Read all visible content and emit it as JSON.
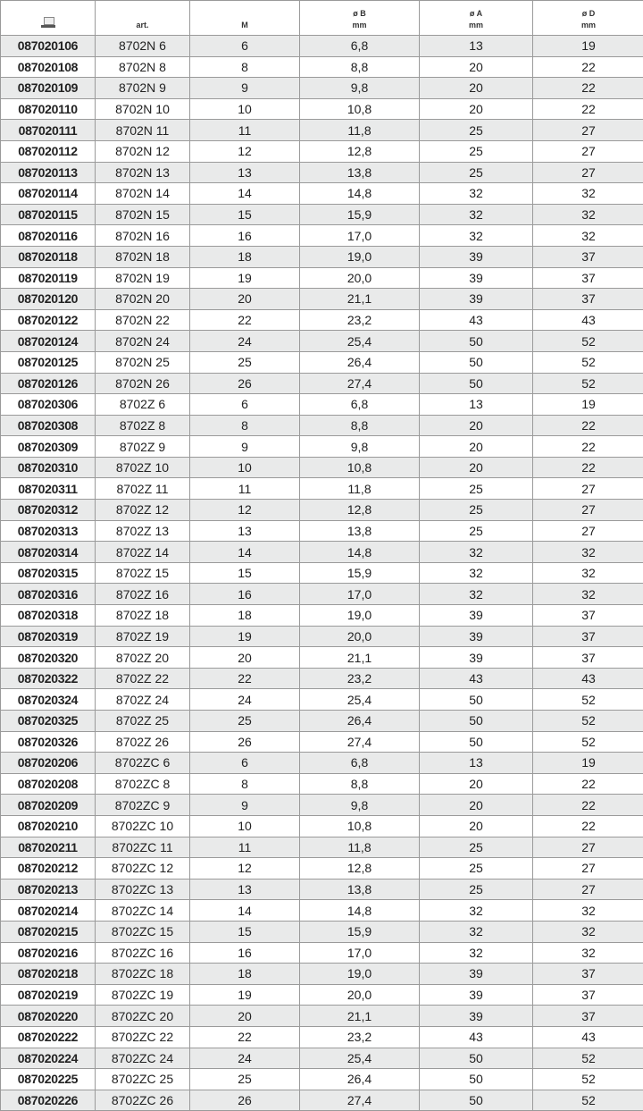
{
  "header": {
    "icon": "computer-icon",
    "cols": [
      "art.",
      "M",
      "ø B",
      "ø A",
      "ø D"
    ],
    "units": [
      "",
      "",
      "mm",
      "mm",
      "mm"
    ]
  },
  "rows": [
    [
      "087020106",
      "8702N 6",
      "6",
      "6,8",
      "13",
      "19"
    ],
    [
      "087020108",
      "8702N 8",
      "8",
      "8,8",
      "20",
      "22"
    ],
    [
      "087020109",
      "8702N 9",
      "9",
      "9,8",
      "20",
      "22"
    ],
    [
      "087020110",
      "8702N 10",
      "10",
      "10,8",
      "20",
      "22"
    ],
    [
      "087020111",
      "8702N 11",
      "11",
      "11,8",
      "25",
      "27"
    ],
    [
      "087020112",
      "8702N 12",
      "12",
      "12,8",
      "25",
      "27"
    ],
    [
      "087020113",
      "8702N 13",
      "13",
      "13,8",
      "25",
      "27"
    ],
    [
      "087020114",
      "8702N 14",
      "14",
      "14,8",
      "32",
      "32"
    ],
    [
      "087020115",
      "8702N 15",
      "15",
      "15,9",
      "32",
      "32"
    ],
    [
      "087020116",
      "8702N 16",
      "16",
      "17,0",
      "32",
      "32"
    ],
    [
      "087020118",
      "8702N 18",
      "18",
      "19,0",
      "39",
      "37"
    ],
    [
      "087020119",
      "8702N 19",
      "19",
      "20,0",
      "39",
      "37"
    ],
    [
      "087020120",
      "8702N 20",
      "20",
      "21,1",
      "39",
      "37"
    ],
    [
      "087020122",
      "8702N 22",
      "22",
      "23,2",
      "43",
      "43"
    ],
    [
      "087020124",
      "8702N 24",
      "24",
      "25,4",
      "50",
      "52"
    ],
    [
      "087020125",
      "8702N 25",
      "25",
      "26,4",
      "50",
      "52"
    ],
    [
      "087020126",
      "8702N 26",
      "26",
      "27,4",
      "50",
      "52"
    ],
    [
      "087020306",
      "8702Z 6",
      "6",
      "6,8",
      "13",
      "19"
    ],
    [
      "087020308",
      "8702Z 8",
      "8",
      "8,8",
      "20",
      "22"
    ],
    [
      "087020309",
      "8702Z 9",
      "9",
      "9,8",
      "20",
      "22"
    ],
    [
      "087020310",
      "8702Z 10",
      "10",
      "10,8",
      "20",
      "22"
    ],
    [
      "087020311",
      "8702Z 11",
      "11",
      "11,8",
      "25",
      "27"
    ],
    [
      "087020312",
      "8702Z 12",
      "12",
      "12,8",
      "25",
      "27"
    ],
    [
      "087020313",
      "8702Z 13",
      "13",
      "13,8",
      "25",
      "27"
    ],
    [
      "087020314",
      "8702Z 14",
      "14",
      "14,8",
      "32",
      "32"
    ],
    [
      "087020315",
      "8702Z 15",
      "15",
      "15,9",
      "32",
      "32"
    ],
    [
      "087020316",
      "8702Z 16",
      "16",
      "17,0",
      "32",
      "32"
    ],
    [
      "087020318",
      "8702Z 18",
      "18",
      "19,0",
      "39",
      "37"
    ],
    [
      "087020319",
      "8702Z 19",
      "19",
      "20,0",
      "39",
      "37"
    ],
    [
      "087020320",
      "8702Z 20",
      "20",
      "21,1",
      "39",
      "37"
    ],
    [
      "087020322",
      "8702Z 22",
      "22",
      "23,2",
      "43",
      "43"
    ],
    [
      "087020324",
      "8702Z 24",
      "24",
      "25,4",
      "50",
      "52"
    ],
    [
      "087020325",
      "8702Z 25",
      "25",
      "26,4",
      "50",
      "52"
    ],
    [
      "087020326",
      "8702Z 26",
      "26",
      "27,4",
      "50",
      "52"
    ],
    [
      "087020206",
      "8702ZC 6",
      "6",
      "6,8",
      "13",
      "19"
    ],
    [
      "087020208",
      "8702ZC 8",
      "8",
      "8,8",
      "20",
      "22"
    ],
    [
      "087020209",
      "8702ZC 9",
      "9",
      "9,8",
      "20",
      "22"
    ],
    [
      "087020210",
      "8702ZC 10",
      "10",
      "10,8",
      "20",
      "22"
    ],
    [
      "087020211",
      "8702ZC 11",
      "11",
      "11,8",
      "25",
      "27"
    ],
    [
      "087020212",
      "8702ZC 12",
      "12",
      "12,8",
      "25",
      "27"
    ],
    [
      "087020213",
      "8702ZC 13",
      "13",
      "13,8",
      "25",
      "27"
    ],
    [
      "087020214",
      "8702ZC 14",
      "14",
      "14,8",
      "32",
      "32"
    ],
    [
      "087020215",
      "8702ZC 15",
      "15",
      "15,9",
      "32",
      "32"
    ],
    [
      "087020216",
      "8702ZC 16",
      "16",
      "17,0",
      "32",
      "32"
    ],
    [
      "087020218",
      "8702ZC 18",
      "18",
      "19,0",
      "39",
      "37"
    ],
    [
      "087020219",
      "8702ZC 19",
      "19",
      "20,0",
      "39",
      "37"
    ],
    [
      "087020220",
      "8702ZC 20",
      "20",
      "21,1",
      "39",
      "37"
    ],
    [
      "087020222",
      "8702ZC 22",
      "22",
      "23,2",
      "43",
      "43"
    ],
    [
      "087020224",
      "8702ZC 24",
      "24",
      "25,4",
      "50",
      "52"
    ],
    [
      "087020225",
      "8702ZC 25",
      "25",
      "26,4",
      "50",
      "52"
    ],
    [
      "087020226",
      "8702ZC 26",
      "26",
      "27,4",
      "50",
      "52"
    ]
  ],
  "colors": {
    "alt_row": "#e9eaea",
    "border": "#9a9a9a"
  }
}
